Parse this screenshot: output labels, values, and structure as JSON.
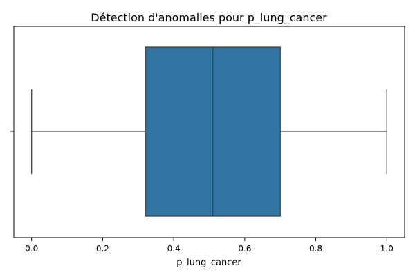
{
  "chart_data": {
    "type": "boxplot",
    "orientation": "horizontal",
    "title": "Détection d'anomalies pour p_lung_cancer",
    "xlabel": "p_lung_cancer",
    "ylabel": "",
    "xlim": [
      -0.05,
      1.05
    ],
    "xticks": [
      0.0,
      0.2,
      0.4,
      0.6,
      0.8,
      1.0
    ],
    "xtick_labels": [
      "0.0",
      "0.2",
      "0.4",
      "0.6",
      "0.8",
      "1.0"
    ],
    "series": [
      {
        "min": 0.0,
        "q1": 0.32,
        "median": 0.51,
        "q3": 0.7,
        "max": 1.0,
        "outliers": []
      }
    ],
    "grid": false,
    "colors": {
      "box_fill": "#3274a1",
      "line": "#3f3f3f",
      "axis": "#000000"
    }
  }
}
